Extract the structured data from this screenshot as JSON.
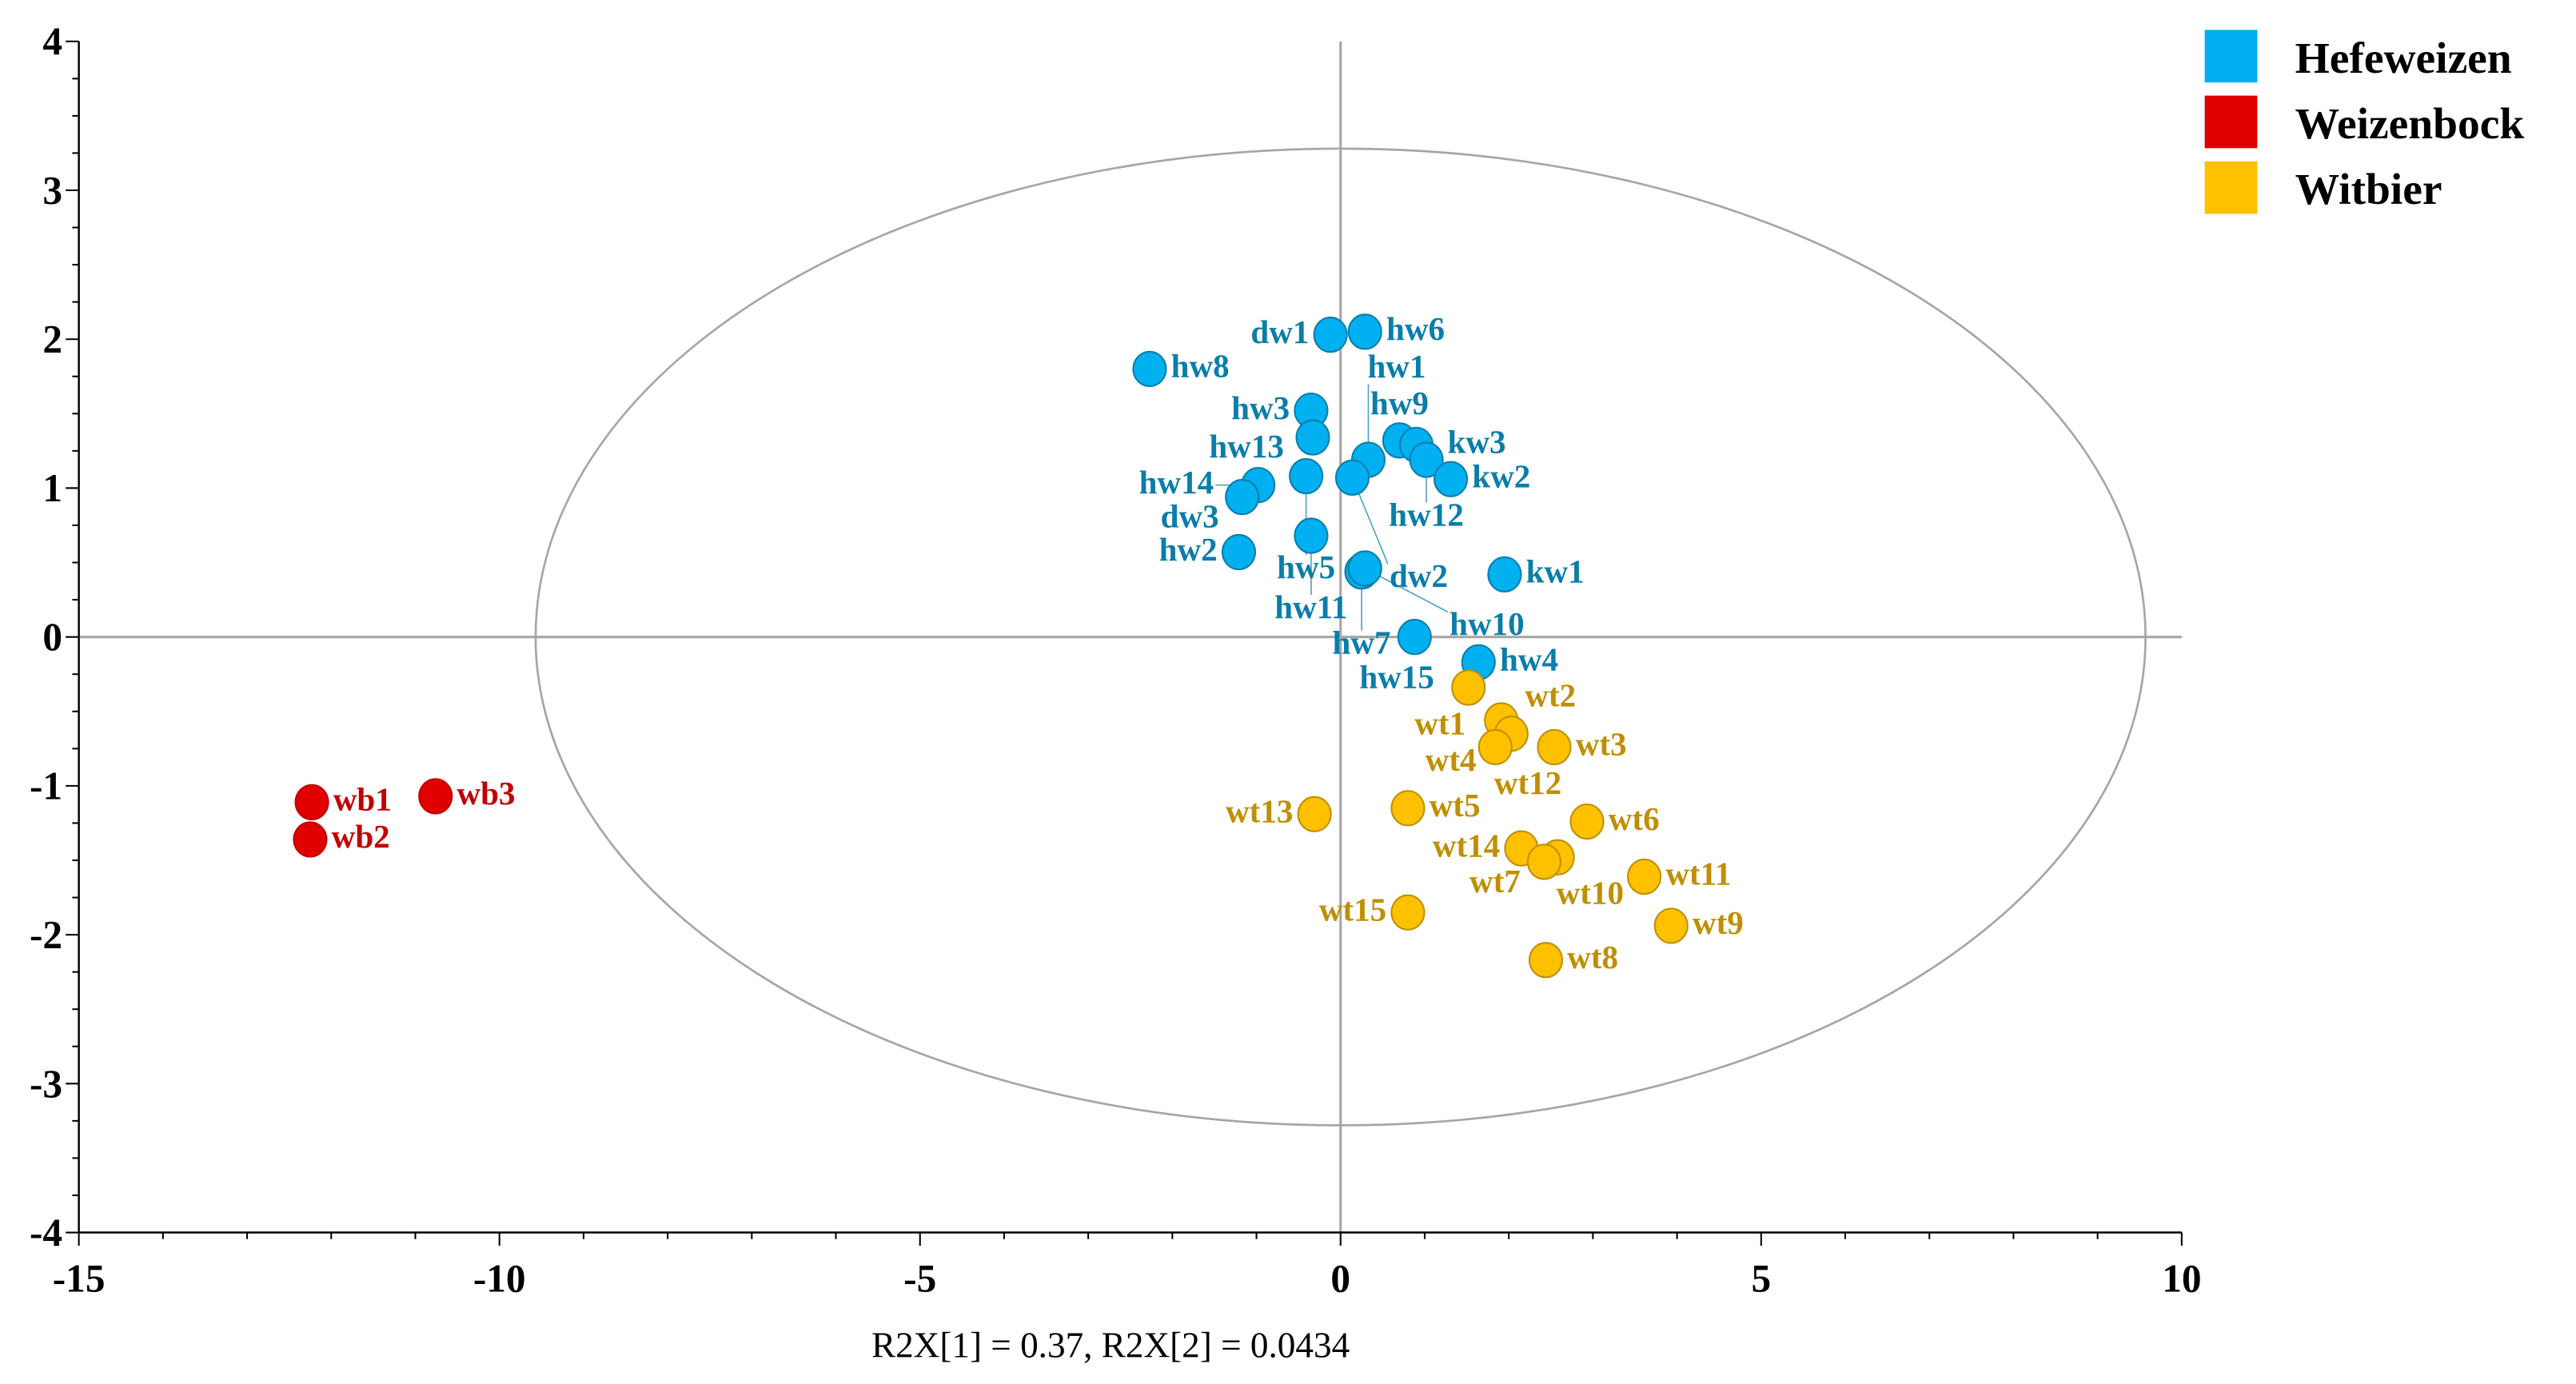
{
  "chart_data": {
    "type": "scatter",
    "xlabel": "",
    "ylabel": "",
    "annotation": "R2X[1] = 0.37, R2X[2] = 0.0434",
    "xlim": [
      -15,
      10
    ],
    "ylim": [
      -4,
      4
    ],
    "xticks": [
      "-15",
      "-10",
      "-5",
      "0",
      "5",
      "10"
    ],
    "yticks": [
      "4",
      "3",
      "2",
      "1",
      "0",
      "-1",
      "-2",
      "-3",
      "-4"
    ],
    "grid": false,
    "legend_position": "top-right",
    "hotelling_ellipse": {
      "center": [
        0,
        0
      ],
      "x_radius": 9.57,
      "y_radius": 3.28,
      "color": "#A6A6A6"
    },
    "series": [
      {
        "name": "Hefeweizen",
        "color": "#00B0F0",
        "label_color": "#0A7DAA",
        "points": [
          {
            "label": "dw1",
            "x": -0.12,
            "y": 2.03
          },
          {
            "label": "hw6",
            "x": 0.29,
            "y": 2.05
          },
          {
            "label": "hw8",
            "x": -2.27,
            "y": 1.8
          },
          {
            "label": "hw3",
            "x": -0.35,
            "y": 1.52
          },
          {
            "label": "hw13",
            "x": -0.33,
            "y": 1.34
          },
          {
            "label": "hw9",
            "x": 0.7,
            "y": 1.32
          },
          {
            "label": "kw3",
            "x": 0.9,
            "y": 1.29
          },
          {
            "label": "hw12",
            "x": 1.02,
            "y": 1.19
          },
          {
            "label": "hw1",
            "x": 0.33,
            "y": 1.19
          },
          {
            "label": "kw2",
            "x": 1.31,
            "y": 1.06
          },
          {
            "label": "hw5",
            "x": -0.41,
            "y": 1.08
          },
          {
            "label": "dw2",
            "x": 0.14,
            "y": 1.07
          },
          {
            "label": "hw14",
            "x": -0.98,
            "y": 1.02
          },
          {
            "label": "dw3",
            "x": -1.17,
            "y": 0.94
          },
          {
            "label": "hw11",
            "x": -0.35,
            "y": 0.68
          },
          {
            "label": "hw2",
            "x": -1.21,
            "y": 0.57
          },
          {
            "label": "hw7",
            "x": 0.25,
            "y": 0.44
          },
          {
            "label": "hw10",
            "x": 0.29,
            "y": 0.46
          },
          {
            "label": "kw1",
            "x": 1.95,
            "y": 0.42
          },
          {
            "label": "hw15",
            "x": 0.88,
            "y": 0.0
          },
          {
            "label": "hw4",
            "x": 1.64,
            "y": -0.17
          }
        ]
      },
      {
        "name": "Weizenbock",
        "color": "#E00000",
        "label_color": "#C00000",
        "points": [
          {
            "label": "wb1",
            "x": -12.23,
            "y": -1.11
          },
          {
            "label": "wb2",
            "x": -12.25,
            "y": -1.36
          },
          {
            "label": "wb3",
            "x": -10.76,
            "y": -1.07
          }
        ]
      },
      {
        "name": "Witbier",
        "color": "#FFC000",
        "label_color": "#BF8F00",
        "points": [
          {
            "label": "wt1",
            "x": 1.52,
            "y": -0.34
          },
          {
            "label": "wt2",
            "x": 1.91,
            "y": -0.56
          },
          {
            "label": "wt4",
            "x": 2.03,
            "y": -0.65
          },
          {
            "label": "wt12",
            "x": 1.84,
            "y": -0.74
          },
          {
            "label": "wt3",
            "x": 2.54,
            "y": -0.74
          },
          {
            "label": "wt13",
            "x": -0.31,
            "y": -1.19
          },
          {
            "label": "wt5",
            "x": 0.8,
            "y": -1.15
          },
          {
            "label": "wt10",
            "x": 2.58,
            "y": -1.48
          },
          {
            "label": "wt14",
            "x": 2.15,
            "y": -1.42
          },
          {
            "label": "wt7",
            "x": 2.42,
            "y": -1.51
          },
          {
            "label": "wt6",
            "x": 2.93,
            "y": -1.24
          },
          {
            "label": "wt11",
            "x": 3.61,
            "y": -1.61
          },
          {
            "label": "wt15",
            "x": 0.8,
            "y": -1.85
          },
          {
            "label": "wt9",
            "x": 3.93,
            "y": -1.94
          },
          {
            "label": "wt8",
            "x": 2.44,
            "y": -2.17
          }
        ]
      }
    ]
  }
}
